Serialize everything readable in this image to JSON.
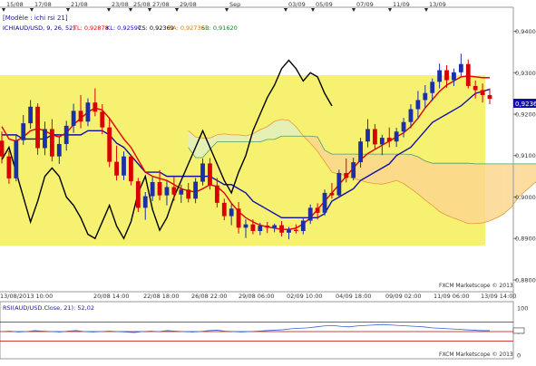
{
  "top_dates": [
    "15/08",
    "17/08",
    "21/08",
    "23/08",
    "25/08",
    "27/08",
    "29/08",
    "Sep",
    "03/09",
    "05/09",
    "07/09",
    "11/09",
    "13/09"
  ],
  "model_label": "[Modèle : ichi rsi 21]",
  "legend": {
    "symbol": "ICH(AUD/USD, 9, 26, 52)",
    "tl": "TL: 0,92878",
    "kl": "KL: 0,92597",
    "cs": "CS: 0,92369",
    "sa": "SA: 0,92736",
    "sb": "SB: 0,91620"
  },
  "price_label": "0,92369",
  "watermark_main": "FXCM Marketscope © 2013",
  "watermark_rsi": "FXCM Marketscope © 2013",
  "rsi_label": "RSI(AUD/USD.Close, 21): 52,02",
  "colors": {
    "kumo_green": "#e1f0c0",
    "kumo_orange": "#fbd78e",
    "tenkan": "#e00000",
    "kijun": "#1010a8",
    "chikou": "#000000",
    "bull": "#1a2fa8",
    "bear": "#d80000",
    "highlight": "#f7f171",
    "rsi_line": "#3a5fd6",
    "rsi_levels": "#c00000"
  },
  "chart_data": [
    {
      "type": "candlestick",
      "indicator": "Ichimoku",
      "ylim": [
        0.8754,
        0.9458
      ],
      "ytick_values": [
        0.88,
        0.89,
        0.9,
        0.91,
        0.92,
        0.93,
        0.94
      ],
      "yticks": [
        "0,8800",
        "0,8900",
        "0,9000",
        "0,9100",
        "0,9200",
        "0,9300",
        "0,9400"
      ],
      "xticks": [
        "13/08/2013 10:00",
        "20/08 14:00",
        "22/08 18:00",
        "26/08 22:00",
        "29/08 06:00",
        "02/09 10:00",
        "04/09 18:00",
        "09/09 02:00",
        "11/09 06:00",
        "13/09 14:00"
      ],
      "current_price": 0.92369,
      "candles": [
        [
          0.9136,
          0.9158,
          0.9081,
          0.9098
        ],
        [
          0.9098,
          0.9112,
          0.9032,
          0.9045
        ],
        [
          0.9045,
          0.9152,
          0.9038,
          0.9137
        ],
        [
          0.9137,
          0.9198,
          0.9126,
          0.9178
        ],
        [
          0.9178,
          0.9234,
          0.9165,
          0.9218
        ],
        [
          0.9218,
          0.9226,
          0.9102,
          0.9118
        ],
        [
          0.9118,
          0.9182,
          0.9101,
          0.9164
        ],
        [
          0.9164,
          0.9188,
          0.9086,
          0.9098
        ],
        [
          0.9098,
          0.9146,
          0.908,
          0.9128
        ],
        [
          0.9128,
          0.9184,
          0.9112,
          0.9172
        ],
        [
          0.9172,
          0.9225,
          0.9155,
          0.9208
        ],
        [
          0.9208,
          0.9246,
          0.9166,
          0.9182
        ],
        [
          0.9182,
          0.9238,
          0.9171,
          0.9228
        ],
        [
          0.9228,
          0.9262,
          0.9195,
          0.9206
        ],
        [
          0.9206,
          0.9224,
          0.9152,
          0.9168
        ],
        [
          0.9168,
          0.9191,
          0.9072,
          0.9085
        ],
        [
          0.9085,
          0.9124,
          0.904,
          0.9052
        ],
        [
          0.9052,
          0.911,
          0.9041,
          0.9098
        ],
        [
          0.9098,
          0.9102,
          0.9028,
          0.9038
        ],
        [
          0.9038,
          0.9046,
          0.8964,
          0.8974
        ],
        [
          0.8974,
          0.9012,
          0.8945,
          0.9002
        ],
        [
          0.9002,
          0.9048,
          0.899,
          0.9036
        ],
        [
          0.9036,
          0.9065,
          0.8992,
          0.9004
        ],
        [
          0.9004,
          0.904,
          0.898,
          0.9024
        ],
        [
          0.9024,
          0.9048,
          0.8991,
          0.9006
        ],
        [
          0.9006,
          0.903,
          0.8986,
          0.9018
        ],
        [
          0.9018,
          0.9034,
          0.8987,
          0.8996
        ],
        [
          0.8996,
          0.9046,
          0.8985,
          0.9037
        ],
        [
          0.9037,
          0.9093,
          0.9028,
          0.9081
        ],
        [
          0.9081,
          0.9094,
          0.9018,
          0.9028
        ],
        [
          0.9028,
          0.9046,
          0.8975,
          0.8986
        ],
        [
          0.8986,
          0.8996,
          0.8944,
          0.8954
        ],
        [
          0.8954,
          0.8983,
          0.8932,
          0.8972
        ],
        [
          0.8972,
          0.8988,
          0.8912,
          0.8926
        ],
        [
          0.8926,
          0.8946,
          0.8901,
          0.8934
        ],
        [
          0.8934,
          0.8946,
          0.891,
          0.8918
        ],
        [
          0.8918,
          0.8938,
          0.8908,
          0.8931
        ],
        [
          0.8931,
          0.894,
          0.8913,
          0.8926
        ],
        [
          0.8926,
          0.8936,
          0.8915,
          0.8932
        ],
        [
          0.8932,
          0.8942,
          0.8905,
          0.8914
        ],
        [
          0.8914,
          0.8928,
          0.8898,
          0.8921
        ],
        [
          0.8921,
          0.8934,
          0.8912,
          0.8918
        ],
        [
          0.8918,
          0.895,
          0.891,
          0.8943
        ],
        [
          0.8943,
          0.8982,
          0.8935,
          0.8974
        ],
        [
          0.8974,
          0.8985,
          0.8946,
          0.8962
        ],
        [
          0.8962,
          0.9018,
          0.8955,
          0.901
        ],
        [
          0.901,
          0.9034,
          0.8996,
          0.9004
        ],
        [
          0.9004,
          0.9066,
          0.8998,
          0.9058
        ],
        [
          0.9058,
          0.9093,
          0.9035,
          0.9046
        ],
        [
          0.9046,
          0.9095,
          0.904,
          0.9084
        ],
        [
          0.9084,
          0.9143,
          0.9071,
          0.9134
        ],
        [
          0.9134,
          0.9188,
          0.912,
          0.9164
        ],
        [
          0.9164,
          0.9176,
          0.9115,
          0.9127
        ],
        [
          0.9127,
          0.915,
          0.9101,
          0.9143
        ],
        [
          0.9143,
          0.9168,
          0.912,
          0.9134
        ],
        [
          0.9134,
          0.9167,
          0.9121,
          0.9158
        ],
        [
          0.9158,
          0.9191,
          0.9144,
          0.9181
        ],
        [
          0.9181,
          0.9224,
          0.9166,
          0.9212
        ],
        [
          0.9212,
          0.9256,
          0.9188,
          0.9234
        ],
        [
          0.9234,
          0.927,
          0.9215,
          0.9251
        ],
        [
          0.9251,
          0.9286,
          0.9232,
          0.9278
        ],
        [
          0.9278,
          0.9322,
          0.9262,
          0.9306
        ],
        [
          0.9306,
          0.9318,
          0.9264,
          0.9282
        ],
        [
          0.9282,
          0.931,
          0.9268,
          0.9301
        ],
        [
          0.9301,
          0.9346,
          0.9292,
          0.9321
        ],
        [
          0.9321,
          0.9332,
          0.9262,
          0.9268
        ],
        [
          0.9268,
          0.9281,
          0.9238,
          0.9258
        ],
        [
          0.9258,
          0.9274,
          0.9228,
          0.9246
        ],
        [
          0.9246,
          0.9262,
          0.9224,
          0.9237
        ]
      ],
      "tenkan": [
        0.917,
        0.914,
        0.9135,
        0.9145,
        0.916,
        0.9165,
        0.916,
        0.915,
        0.9145,
        0.9155,
        0.9175,
        0.919,
        0.9205,
        0.9215,
        0.921,
        0.919,
        0.9165,
        0.914,
        0.912,
        0.909,
        0.906,
        0.905,
        0.9045,
        0.904,
        0.903,
        0.902,
        0.9015,
        0.9012,
        0.902,
        0.903,
        0.9025,
        0.901,
        0.8985,
        0.8965,
        0.895,
        0.894,
        0.8932,
        0.8928,
        0.8925,
        0.8922,
        0.8922,
        0.8925,
        0.8935,
        0.895,
        0.897,
        0.899,
        0.901,
        0.903,
        0.905,
        0.907,
        0.909,
        0.9105,
        0.9115,
        0.9125,
        0.9135,
        0.9145,
        0.9155,
        0.917,
        0.919,
        0.9215,
        0.9235,
        0.9255,
        0.927,
        0.928,
        0.929,
        0.9292,
        0.929,
        0.9288,
        0.9288
      ],
      "kijun": [
        0.915,
        0.915,
        0.915,
        0.914,
        0.914,
        0.914,
        0.914,
        0.915,
        0.915,
        0.915,
        0.915,
        0.915,
        0.916,
        0.916,
        0.916,
        0.915,
        0.913,
        0.912,
        0.91,
        0.908,
        0.906,
        0.906,
        0.906,
        0.905,
        0.905,
        0.905,
        0.905,
        0.905,
        0.905,
        0.905,
        0.904,
        0.903,
        0.903,
        0.902,
        0.901,
        0.899,
        0.898,
        0.897,
        0.896,
        0.895,
        0.895,
        0.895,
        0.895,
        0.895,
        0.895,
        0.896,
        0.899,
        0.9,
        0.901,
        0.902,
        0.904,
        0.905,
        0.906,
        0.907,
        0.908,
        0.91,
        0.911,
        0.912,
        0.914,
        0.916,
        0.918,
        0.919,
        0.92,
        0.921,
        0.922,
        0.9235,
        0.925,
        0.9255,
        0.926
      ],
      "chikou": [
        0.909,
        0.912,
        0.906,
        0.9,
        0.894,
        0.899,
        0.905,
        0.907,
        0.905,
        0.9,
        0.898,
        0.895,
        0.891,
        0.89,
        0.894,
        0.898,
        0.893,
        0.89,
        0.894,
        0.901,
        0.905,
        0.897,
        0.892,
        0.895,
        0.9,
        0.904,
        0.908,
        0.912,
        0.916,
        0.912,
        0.908,
        0.904,
        0.901,
        0.906,
        0.91,
        0.916,
        0.92,
        0.924,
        0.927,
        0.931,
        0.933,
        0.931,
        0.928,
        0.93,
        0.929,
        0.925,
        0.922
      ]
    },
    {
      "type": "line",
      "indicator": "RSI",
      "period": 21,
      "ylim": [
        0,
        100
      ],
      "levels": [
        30,
        50,
        70
      ],
      "yticks": [
        "100",
        "50",
        "0"
      ],
      "current_value": 52.02,
      "values": [
        50,
        51,
        49,
        50,
        52,
        51,
        50,
        49,
        51,
        52,
        50,
        49,
        50,
        51,
        50,
        49,
        48,
        50,
        51,
        50,
        52,
        51,
        50,
        49,
        50,
        52,
        53,
        51,
        50,
        49,
        50,
        51,
        52,
        53,
        54,
        56,
        57,
        58,
        60,
        62,
        63,
        61,
        60,
        62,
        63,
        64,
        65,
        64,
        63,
        62,
        61,
        60,
        58,
        57,
        56,
        55,
        54,
        53,
        52,
        52
      ]
    }
  ]
}
